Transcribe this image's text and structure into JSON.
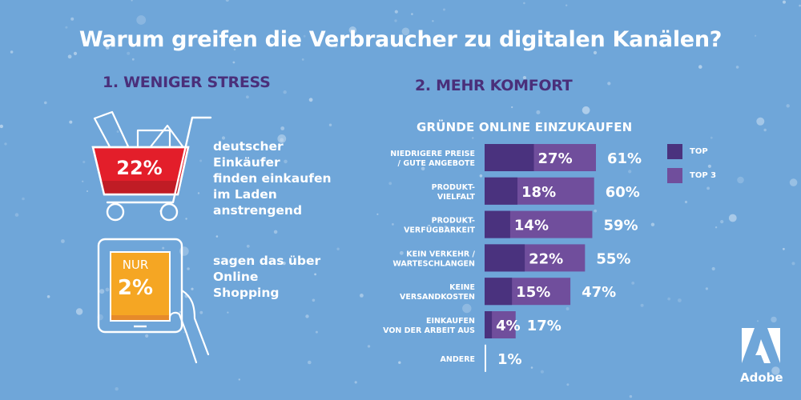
{
  "title": "Warum greifen die Verbraucher zu digitalen Kanälen?",
  "section1": {
    "heading": "1. WENIGER STRESS",
    "stat1": {
      "value": "22%",
      "icon": "shopping-cart-icon",
      "description": [
        "deutscher",
        "Einkäufer",
        "finden einkaufen",
        "im Laden",
        "anstrengend"
      ]
    },
    "stat2": {
      "prefix": "NUR",
      "value": "2%",
      "icon": "tablet-hand-icon",
      "description": [
        "sagen das über",
        "Online",
        "Shopping"
      ]
    }
  },
  "section2": {
    "heading": "2. MEHR KOMFORT"
  },
  "colors": {
    "background": "#6fa6d9",
    "heading": "#4a2f7a",
    "top": "#4a327e",
    "top3": "#704e9c",
    "cart": "#e31e2a",
    "cart_dark": "#c01c25",
    "tablet": "#f5a623",
    "tablet_dark": "#e68a2a"
  },
  "chart_data": {
    "type": "bar",
    "orientation": "horizontal",
    "stacked_overlay": true,
    "title": "GRÜNDE ONLINE EINZUKAUFEN",
    "categories": [
      [
        "NIEDRIGERE PREISE",
        "/ GUTE ANGEBOTE"
      ],
      [
        "PRODUKT-",
        "VIELFALT"
      ],
      [
        "PRODUKT-",
        "VERFÜGBARKEIT"
      ],
      [
        "KEIN VERKEHR /",
        "WARTESCHLANGEN"
      ],
      [
        "KEINE",
        "VERSANDKOSTEN"
      ],
      [
        "EINKAUFEN",
        "VON DER ARBEIT AUS"
      ],
      [
        "ANDERE"
      ]
    ],
    "series": [
      {
        "name": "TOP",
        "values": [
          27,
          18,
          14,
          22,
          15,
          4,
          null
        ],
        "labels": [
          "27%",
          "18%",
          "14%",
          "22%",
          "15%",
          "4%",
          ""
        ]
      },
      {
        "name": "TOP 3",
        "values": [
          61,
          60,
          59,
          55,
          47,
          17,
          1
        ],
        "labels": [
          "61%",
          "60%",
          "59%",
          "55%",
          "47%",
          "17%",
          "1%"
        ]
      }
    ],
    "unit": "%",
    "legend": "right",
    "grid": false
  },
  "legend": [
    {
      "label": "TOP",
      "color_key": "top"
    },
    {
      "label": "TOP 3",
      "color_key": "top3"
    }
  ],
  "brand": {
    "name": "Adobe"
  }
}
